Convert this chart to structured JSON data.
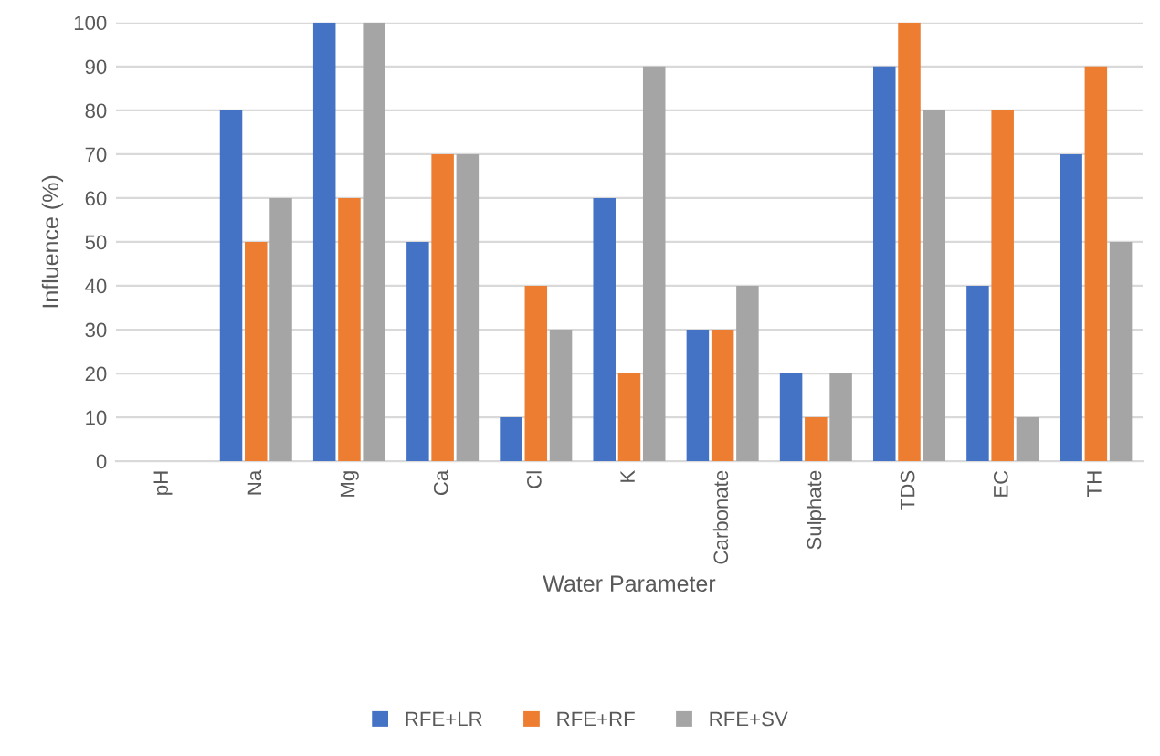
{
  "chart_data": {
    "type": "bar",
    "xlabel": "Water Parameter",
    "ylabel": "Influence (%)",
    "categories": [
      "pH",
      "Na",
      "Mg",
      "Ca",
      "Cl",
      "K",
      "Carbonate",
      "Sulphate",
      "TDS",
      "EC",
      "TH"
    ],
    "series": [
      {
        "name": "RFE+LR",
        "color": "#4472c4",
        "values": [
          0,
          80,
          100,
          50,
          10,
          60,
          30,
          20,
          90,
          40,
          70
        ]
      },
      {
        "name": "RFE+RF",
        "color": "#ed7d31",
        "values": [
          0,
          50,
          60,
          70,
          40,
          20,
          30,
          10,
          100,
          80,
          90
        ]
      },
      {
        "name": "RFE+SV",
        "color": "#a5a5a5",
        "values": [
          0,
          60,
          100,
          70,
          30,
          90,
          40,
          20,
          80,
          10,
          50
        ]
      }
    ],
    "ylim": [
      0,
      100
    ],
    "yticks": [
      0,
      10,
      20,
      30,
      40,
      50,
      60,
      70,
      80,
      90,
      100
    ],
    "grid": "y",
    "legend": "bottom"
  }
}
